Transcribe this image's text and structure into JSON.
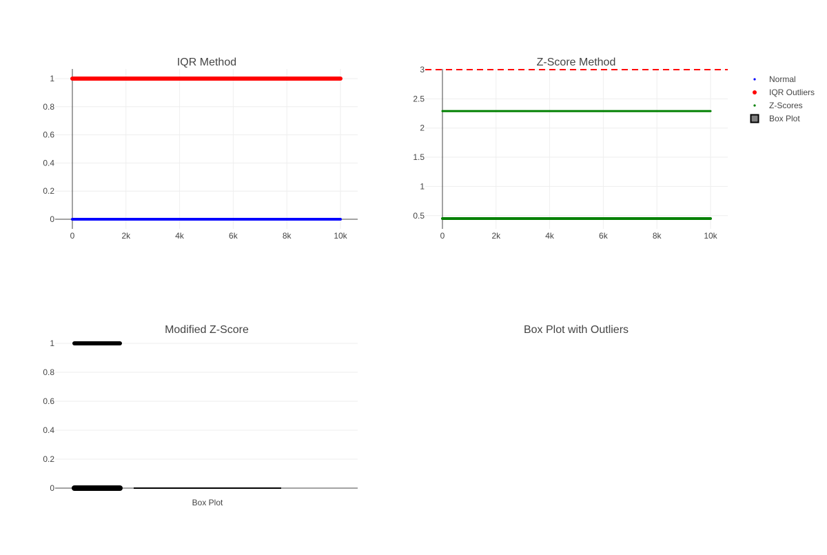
{
  "chart_data": [
    {
      "id": "iqr",
      "type": "scatter",
      "title": "IQR Method",
      "xlim": [
        0,
        10000
      ],
      "ylim": [
        0,
        1
      ],
      "xticks": [
        0,
        2000,
        4000,
        6000,
        8000,
        10000
      ],
      "xtick_labels": [
        "0",
        "2k",
        "4k",
        "6k",
        "8k",
        "10k"
      ],
      "yticks": [
        0,
        0.2,
        0.4,
        0.6,
        0.8,
        1
      ],
      "ytick_labels": [
        "0",
        "0.2",
        "0.4",
        "0.6",
        "0.8",
        "1"
      ],
      "grid": true,
      "series": [
        {
          "name": "Normal",
          "color": "#0000ff",
          "x_range": [
            0,
            10000
          ],
          "y": 0
        },
        {
          "name": "IQR Outliers",
          "color": "#ff0000",
          "x_range": [
            0,
            10000
          ],
          "y": 1
        }
      ]
    },
    {
      "id": "zscore",
      "type": "scatter",
      "title": "Z-Score Method",
      "xlim": [
        0,
        10000
      ],
      "ylim": [
        0.33,
        3
      ],
      "xticks": [
        0,
        2000,
        4000,
        6000,
        8000,
        10000
      ],
      "xtick_labels": [
        "0",
        "2k",
        "4k",
        "6k",
        "8k",
        "10k"
      ],
      "yticks": [
        0.5,
        1,
        1.5,
        2,
        2.5,
        3
      ],
      "ytick_labels": [
        "0.5",
        "1",
        "1.5",
        "2",
        "2.5",
        "3"
      ],
      "grid": true,
      "threshold": {
        "y": 3,
        "color": "#ff0000",
        "style": "dashed"
      },
      "series": [
        {
          "name": "Z-Scores",
          "color": "#008000",
          "x_range": [
            0,
            10000
          ],
          "y_values": [
            0.45,
            2.29
          ]
        }
      ]
    },
    {
      "id": "modz",
      "type": "scatter",
      "title": "Modified Z-Score",
      "ylim": [
        0,
        1
      ],
      "yticks": [
        0,
        0.2,
        0.4,
        0.6,
        0.8,
        1
      ],
      "ytick_labels": [
        "0",
        "0.2",
        "0.4",
        "0.6",
        "0.8",
        "1"
      ],
      "xlabel_category": "Box Plot",
      "grid": true,
      "series": [
        {
          "name": "Modified Z-Score",
          "color": "#000000",
          "y_values": [
            0,
            1
          ]
        }
      ]
    },
    {
      "id": "boxplot",
      "type": "box",
      "title": "Box Plot with Outliers",
      "series": []
    }
  ],
  "legend": {
    "placement": "top-right",
    "items": [
      {
        "label": "Normal",
        "color": "#0000ff",
        "marker": "small-dot"
      },
      {
        "label": "IQR Outliers",
        "color": "#ff0000",
        "marker": "dot"
      },
      {
        "label": "Z-Scores",
        "color": "#008000",
        "marker": "small-dot"
      },
      {
        "label": "Box Plot",
        "color": "#808080",
        "marker": "box"
      }
    ]
  }
}
